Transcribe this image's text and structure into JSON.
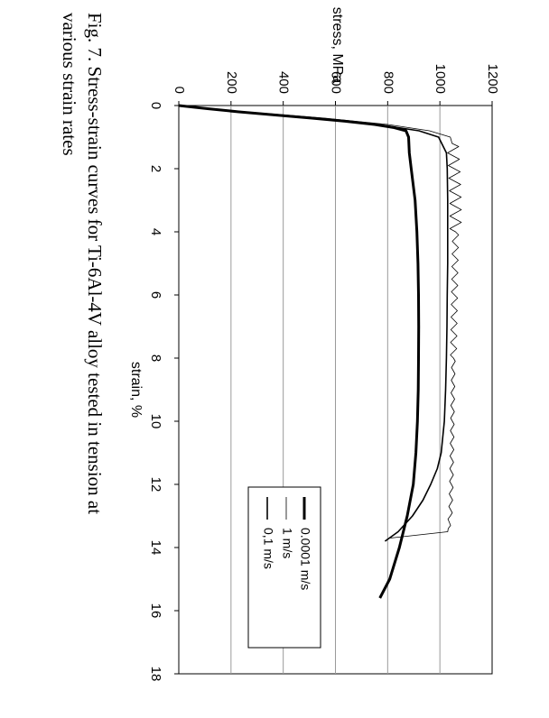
{
  "chart_data": {
    "type": "line",
    "xlabel": "strain, %",
    "ylabel": "stress,  MPa",
    "xlim": [
      0,
      18
    ],
    "ylim": [
      0,
      1200
    ],
    "x_ticks": [
      0,
      2,
      4,
      6,
      8,
      10,
      12,
      14,
      16,
      18
    ],
    "y_ticks": [
      0,
      200,
      400,
      600,
      800,
      1000,
      1200
    ],
    "grid": "horizontal lines at y ticks",
    "legend_position": "bottom-right",
    "series": [
      {
        "name": "0.0001 m/s",
        "line": "thick",
        "color": "#000000",
        "x": [
          0,
          0.1,
          0.2,
          0.3,
          0.4,
          0.5,
          0.6,
          0.7,
          0.8,
          1.0,
          1.5,
          2,
          3,
          4,
          5,
          6,
          7,
          8,
          9,
          10,
          11,
          12,
          13,
          14,
          15,
          15.6
        ],
        "y": [
          0,
          110,
          230,
          370,
          510,
          640,
          750,
          825,
          870,
          880,
          883,
          890,
          905,
          912,
          916,
          918,
          919,
          918,
          917,
          914,
          908,
          898,
          875,
          845,
          808,
          770
        ]
      },
      {
        "name": "1 m/s",
        "line": "thin",
        "color": "#000000",
        "x": [
          0,
          0.2,
          0.4,
          0.6,
          0.8,
          1.0,
          1.3,
          2,
          3,
          4,
          5,
          6,
          7,
          8,
          9,
          10,
          11,
          12,
          13,
          13.5,
          13.7
        ],
        "y": [
          0,
          260,
          560,
          800,
          960,
          1040,
          1050,
          1055,
          1060,
          1060,
          1058,
          1056,
          1054,
          1052,
          1050,
          1048,
          1046,
          1044,
          1040,
          1030,
          810
        ]
      },
      {
        "name": "0,1 m/s",
        "line": "medium",
        "color": "#000000",
        "x": [
          0,
          0.2,
          0.4,
          0.6,
          0.8,
          1.0,
          1.5,
          2,
          3,
          4,
          5,
          6,
          7,
          8,
          9,
          10,
          11,
          11.5,
          12,
          12.5,
          13,
          13.5,
          13.8
        ],
        "y": [
          0,
          240,
          520,
          760,
          920,
          995,
          1025,
          1028,
          1030,
          1030,
          1030,
          1028,
          1027,
          1025,
          1022,
          1017,
          1005,
          990,
          965,
          935,
          895,
          840,
          790
        ]
      }
    ]
  },
  "caption": {
    "line1": "Fig. 7. Stress-strain curves for Ti-6Al-4V alloy tested in tension at",
    "line2": "various strain rates"
  }
}
